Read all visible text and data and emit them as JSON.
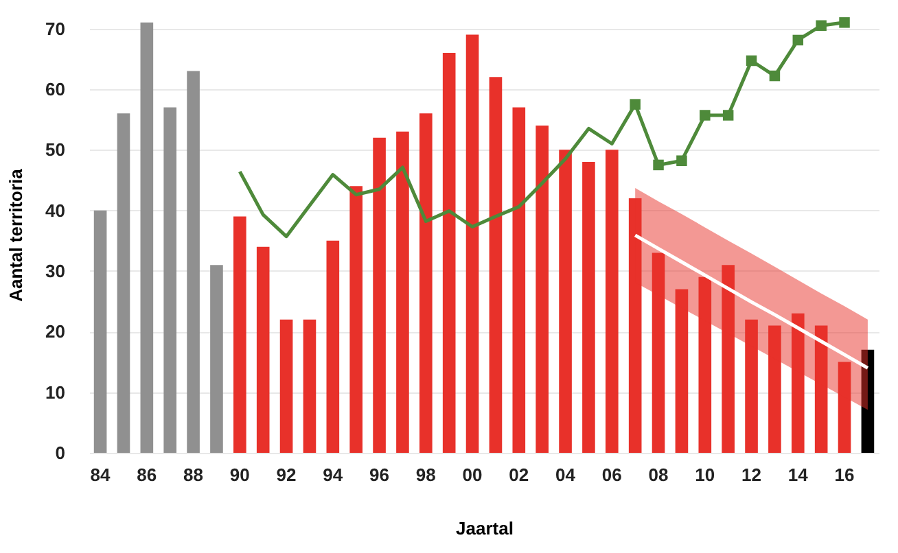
{
  "chart_data": {
    "type": "bar",
    "xlabel": "Jaartal",
    "ylabel": "Aantal territoria",
    "categories": [
      "84",
      null,
      "86",
      null,
      "88",
      null,
      "90",
      null,
      "92",
      null,
      "94",
      null,
      "96",
      null,
      "98",
      null,
      "00",
      null,
      "02",
      null,
      "04",
      null,
      "06",
      null,
      "08",
      null,
      "10",
      null,
      "12",
      null,
      "14",
      null,
      "16",
      null
    ],
    "values": [
      40,
      56,
      71,
      57,
      63,
      31,
      39,
      34,
      22,
      22,
      35,
      44,
      52,
      53,
      56,
      66,
      69,
      62,
      57,
      54,
      50,
      48,
      50,
      42,
      33,
      27,
      29,
      31,
      22,
      21,
      23,
      21,
      15,
      17
    ],
    "colors": [
      "#909090",
      "#909090",
      "#909090",
      "#909090",
      "#909090",
      "#909090",
      "#e8312a",
      "#e8312a",
      "#e8312a",
      "#e8312a",
      "#e8312a",
      "#e8312a",
      "#e8312a",
      "#e8312a",
      "#e8312a",
      "#e8312a",
      "#e8312a",
      "#e8312a",
      "#e8312a",
      "#e8312a",
      "#e8312a",
      "#e8312a",
      "#e8312a",
      "#e8312a",
      "#e8312a",
      "#e8312a",
      "#e8312a",
      "#e8312a",
      "#e8312a",
      "#e8312a",
      "#e8312a",
      "#e8312a",
      "#e8312a",
      "#000000"
    ],
    "series": [
      {
        "type": "line",
        "color": "#4e8a3a",
        "marker": "none",
        "values": [
          null,
          null,
          null,
          null,
          null,
          null,
          46.4,
          39.3,
          35.7,
          40.8,
          45.9,
          42.6,
          43.5,
          47.1,
          38.2,
          39.9,
          37.3,
          39,
          40.6,
          44.5,
          48.5,
          53.5,
          51,
          57.5,
          null,
          null,
          null,
          null,
          null,
          null,
          null,
          null,
          null,
          null
        ]
      },
      {
        "type": "line",
        "color": "#4e8a3a",
        "marker": "square",
        "values": [
          null,
          null,
          null,
          null,
          null,
          null,
          null,
          null,
          null,
          null,
          null,
          null,
          null,
          null,
          null,
          null,
          null,
          null,
          null,
          null,
          null,
          null,
          null,
          57.5,
          47.5,
          48.2,
          55.7,
          55.7,
          64.7,
          62.2,
          68.1,
          70.5,
          71,
          null
        ]
      },
      {
        "type": "line",
        "color": "#ffffff",
        "marker": "none",
        "values": [
          null,
          null,
          null,
          null,
          null,
          null,
          null,
          null,
          null,
          null,
          null,
          null,
          null,
          null,
          null,
          null,
          null,
          null,
          null,
          null,
          null,
          null,
          null,
          35.9,
          33.7,
          31.5,
          29.3,
          27.1,
          24.9,
          22.8,
          20.6,
          18.4,
          16.2,
          14
        ],
        "lower": [
          null,
          null,
          null,
          null,
          null,
          null,
          null,
          null,
          null,
          null,
          null,
          null,
          null,
          null,
          null,
          null,
          null,
          null,
          null,
          null,
          null,
          null,
          null,
          28.1,
          26,
          23.9,
          21.8,
          19.7,
          17.6,
          15.5,
          13.4,
          11.3,
          9.2,
          7.1
        ],
        "upper": [
          null,
          null,
          null,
          null,
          null,
          null,
          null,
          null,
          null,
          null,
          null,
          null,
          null,
          null,
          null,
          null,
          null,
          null,
          null,
          null,
          null,
          null,
          null,
          43.7,
          41.5,
          39.4,
          37.2,
          35,
          32.9,
          30.7,
          28.5,
          26.3,
          24.2,
          22
        ]
      }
    ],
    "ylim": [
      0,
      72
    ],
    "yticks": [
      0,
      10,
      20,
      30,
      40,
      50,
      60,
      70
    ],
    "grid": "y"
  }
}
